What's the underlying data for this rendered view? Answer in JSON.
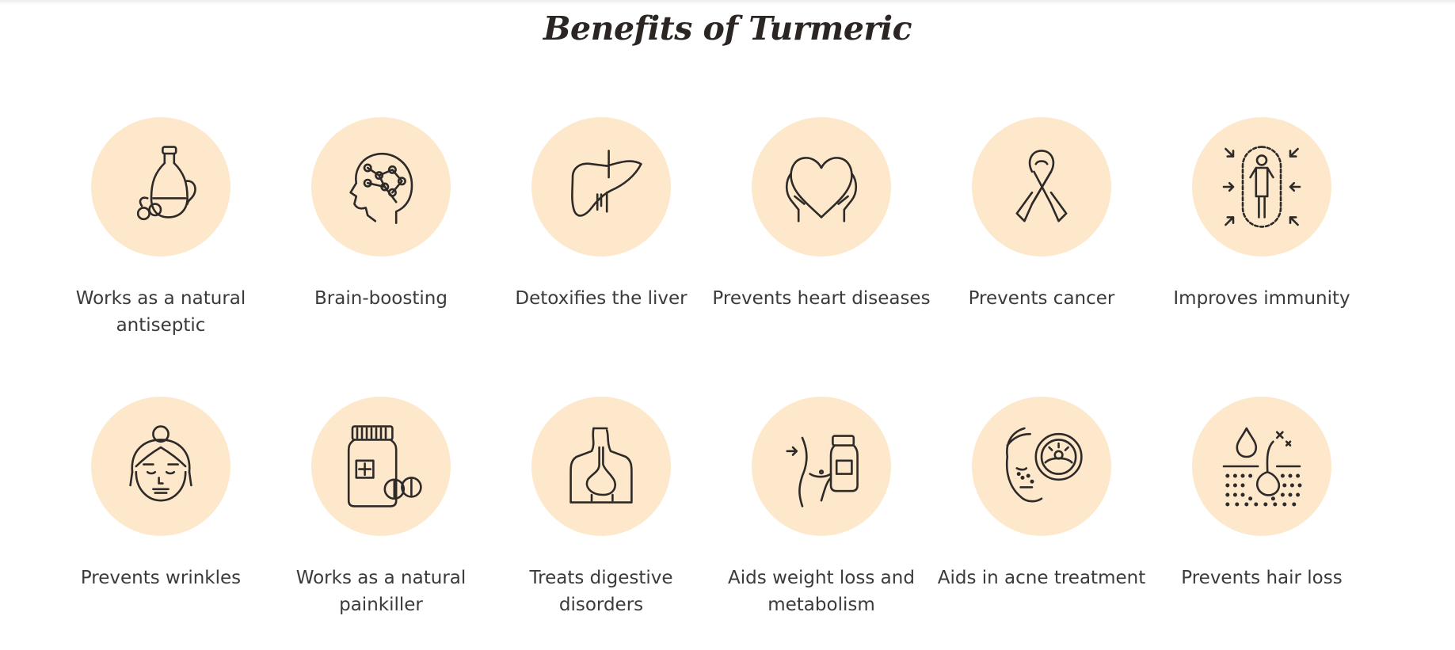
{
  "page": {
    "title": "Benefits of Turmeric",
    "circle_color": "#fde8cc",
    "icon_color": "#2e2a28",
    "text_color": "#3a3a3a"
  },
  "benefits": [
    {
      "label": "Works as a natural antiseptic",
      "icon": "oil-bottle-icon"
    },
    {
      "label": "Brain-boosting",
      "icon": "brain-head-icon"
    },
    {
      "label": "Detoxifies the liver",
      "icon": "liver-icon"
    },
    {
      "label": "Prevents heart diseases",
      "icon": "heart-hands-icon"
    },
    {
      "label": "Prevents cancer",
      "icon": "cancer-ribbon-icon"
    },
    {
      "label": "Improves immunity",
      "icon": "immunity-shield-icon"
    },
    {
      "label": "Prevents wrinkles",
      "icon": "elderly-woman-icon"
    },
    {
      "label": "Works as a natural painkiller",
      "icon": "pill-bottle-icon"
    },
    {
      "label": "Treats digestive disorders",
      "icon": "digestive-system-icon"
    },
    {
      "label": "Aids weight loss and metabolism",
      "icon": "weight-loss-icon"
    },
    {
      "label": "Aids in acne treatment",
      "icon": "acne-magnifier-icon"
    },
    {
      "label": "Prevents hair loss",
      "icon": "hair-follicle-icon"
    }
  ]
}
